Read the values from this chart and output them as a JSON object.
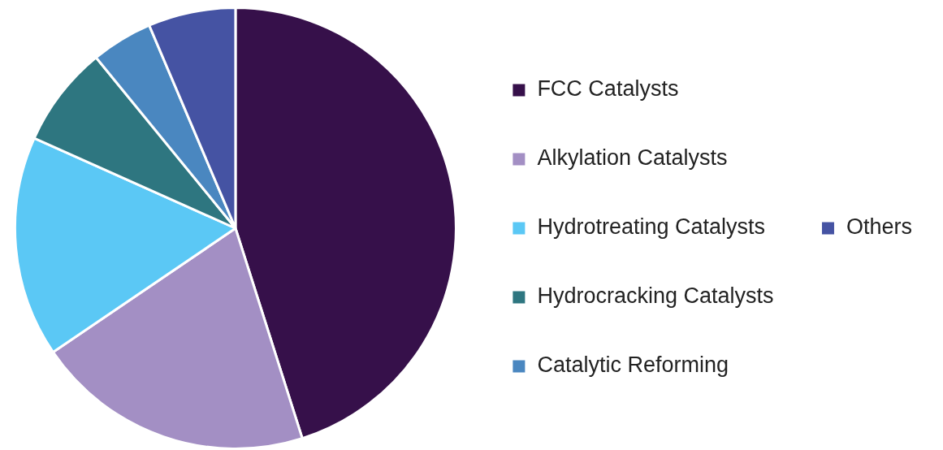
{
  "chart_data": {
    "type": "pie",
    "categories": [
      "FCC Catalysts",
      "Alkylation Catalysts",
      "Hydrotreating Catalysts",
      "Hydrocracking Catalysts",
      "Catalytic Reforming",
      "Others"
    ],
    "values": [
      45.1,
      20.4,
      16.2,
      7.4,
      4.5,
      6.4
    ],
    "colors": [
      "#36104a",
      "#a38fc4",
      "#5bc8f5",
      "#2e7680",
      "#4a87c0",
      "#4553a3"
    ],
    "legend": "right"
  }
}
